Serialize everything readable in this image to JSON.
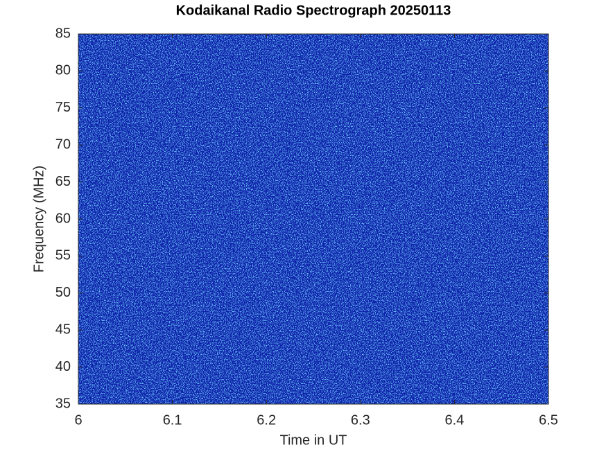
{
  "chart_data": {
    "type": "spectrogram",
    "title": "Kodaikanal Radio Spectrograph  20250113",
    "xlabel": "Time in UT",
    "ylabel": "Frequency (MHz)",
    "xlim": [
      6,
      6.5
    ],
    "xticks": [
      6,
      6.1,
      6.2,
      6.3,
      6.4,
      6.5
    ],
    "ylim": [
      35,
      85
    ],
    "yticks": [
      35,
      40,
      45,
      50,
      55,
      60,
      65,
      70,
      75,
      80,
      85
    ],
    "color": "#0c20a8"
  }
}
